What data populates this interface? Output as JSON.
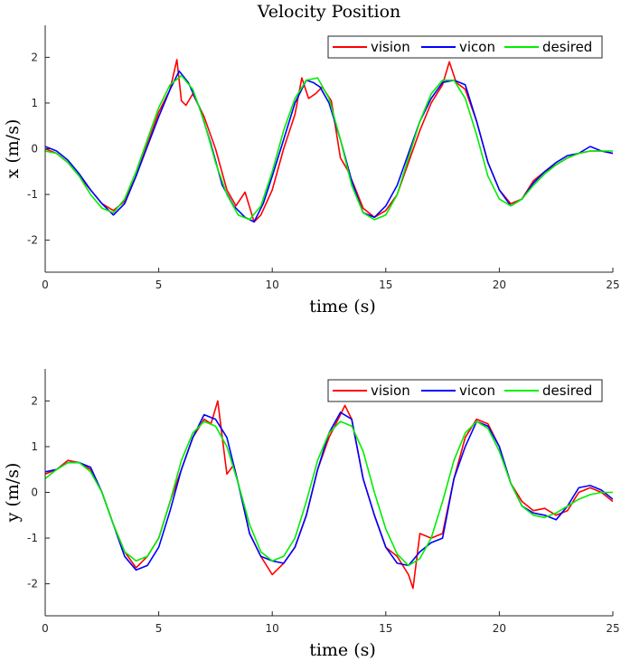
{
  "title": "Velocity Position",
  "colors": {
    "vision": "#ff0000",
    "vicon": "#0000ff",
    "desired": "#00ee00",
    "axis": "#262626"
  },
  "chart_data": [
    {
      "type": "line",
      "title": "Velocity Position",
      "xlabel": "time (s)",
      "ylabel": "x (m/s)",
      "xlim": [
        0,
        25
      ],
      "ylim": [
        -2.7,
        2.7
      ],
      "xticks": [
        0,
        5,
        10,
        15,
        20,
        25
      ],
      "yticks": [
        -2,
        -1,
        0,
        1,
        2
      ],
      "grid": false,
      "legend_position": "top-right",
      "legend_orientation": "horizontal",
      "series": [
        {
          "name": "vision",
          "color": "#ff0000",
          "x": [
            0,
            0.5,
            1,
            1.5,
            2,
            2.5,
            3,
            3.5,
            4,
            4.5,
            5,
            5.5,
            5.8,
            6,
            6.2,
            6.5,
            7,
            7.5,
            8,
            8.4,
            8.8,
            9.2,
            9.5,
            10,
            10.5,
            11,
            11.3,
            11.6,
            11.9,
            12.2,
            12.6,
            13,
            13.3,
            13.6,
            14,
            14.5,
            15,
            15.5,
            16,
            16.5,
            17,
            17.5,
            17.8,
            18.1,
            18.5,
            19,
            19.5,
            20,
            20.5,
            21,
            21.5,
            22,
            22.5,
            23,
            23.5,
            24,
            24.5,
            25
          ],
          "y": [
            0.0,
            -0.1,
            -0.3,
            -0.6,
            -0.9,
            -1.2,
            -1.35,
            -1.15,
            -0.6,
            0.1,
            0.8,
            1.3,
            1.95,
            1.05,
            0.95,
            1.2,
            0.7,
            0.0,
            -0.9,
            -1.25,
            -0.95,
            -1.6,
            -1.45,
            -0.9,
            0.0,
            0.75,
            1.55,
            1.1,
            1.2,
            1.35,
            1.05,
            -0.2,
            -0.45,
            -0.8,
            -1.3,
            -1.5,
            -1.35,
            -1.0,
            -0.3,
            0.4,
            1.0,
            1.4,
            1.9,
            1.45,
            1.3,
            0.6,
            -0.3,
            -0.9,
            -1.2,
            -1.1,
            -0.7,
            -0.5,
            -0.35,
            -0.2,
            -0.1,
            -0.05,
            -0.05,
            -0.1
          ]
        },
        {
          "name": "vicon",
          "color": "#0000ff",
          "x": [
            0,
            0.5,
            1,
            1.5,
            2,
            2.5,
            3,
            3.5,
            4,
            4.5,
            5,
            5.5,
            5.9,
            6.3,
            6.8,
            7.3,
            7.8,
            8.3,
            8.8,
            9.2,
            9.6,
            10,
            10.5,
            11,
            11.5,
            11.8,
            12.1,
            12.5,
            13,
            13.5,
            14,
            14.5,
            15,
            15.5,
            16,
            16.5,
            17,
            17.5,
            18,
            18.5,
            19,
            19.5,
            20,
            20.5,
            21,
            21.5,
            22,
            22.5,
            23,
            23.5,
            24,
            24.5,
            25
          ],
          "y": [
            0.05,
            -0.05,
            -0.25,
            -0.55,
            -0.9,
            -1.2,
            -1.45,
            -1.2,
            -0.6,
            0.05,
            0.7,
            1.3,
            1.7,
            1.45,
            0.9,
            0.1,
            -0.8,
            -1.25,
            -1.5,
            -1.6,
            -1.2,
            -0.6,
            0.2,
            1.0,
            1.5,
            1.45,
            1.35,
            1.0,
            0.2,
            -0.7,
            -1.4,
            -1.5,
            -1.25,
            -0.8,
            -0.1,
            0.6,
            1.1,
            1.45,
            1.5,
            1.4,
            0.6,
            -0.3,
            -0.9,
            -1.25,
            -1.1,
            -0.75,
            -0.5,
            -0.3,
            -0.15,
            -0.1,
            0.05,
            -0.05,
            -0.1
          ]
        },
        {
          "name": "desired",
          "color": "#00ee00",
          "x": [
            0,
            0.5,
            1,
            1.5,
            2,
            2.5,
            3,
            3.5,
            4,
            4.5,
            5,
            5.5,
            6,
            6.5,
            7,
            7.5,
            8,
            8.5,
            9,
            9.5,
            10,
            10.5,
            11,
            11.5,
            12,
            12.5,
            13,
            13.5,
            14,
            14.5,
            15,
            15.5,
            16,
            16.5,
            17,
            17.5,
            18,
            18.5,
            19,
            19.5,
            20,
            20.5,
            21,
            21.5,
            22,
            22.5,
            23,
            23.5,
            24,
            24.5,
            25
          ],
          "y": [
            -0.05,
            -0.1,
            -0.3,
            -0.6,
            -1.0,
            -1.3,
            -1.4,
            -1.1,
            -0.5,
            0.2,
            0.9,
            1.4,
            1.6,
            1.3,
            0.6,
            -0.3,
            -1.0,
            -1.45,
            -1.55,
            -1.25,
            -0.5,
            0.4,
            1.1,
            1.5,
            1.55,
            1.1,
            0.2,
            -0.8,
            -1.4,
            -1.55,
            -1.45,
            -1.0,
            -0.2,
            0.6,
            1.2,
            1.5,
            1.5,
            1.1,
            0.3,
            -0.6,
            -1.1,
            -1.25,
            -1.1,
            -0.8,
            -0.55,
            -0.35,
            -0.2,
            -0.1,
            -0.05,
            -0.05,
            -0.05
          ]
        }
      ]
    },
    {
      "type": "line",
      "title": "",
      "xlabel": "time (s)",
      "ylabel": "y (m/s)",
      "xlim": [
        0,
        25
      ],
      "ylim": [
        -2.7,
        2.7
      ],
      "xticks": [
        0,
        5,
        10,
        15,
        20,
        25
      ],
      "yticks": [
        -2,
        -1,
        0,
        1,
        2
      ],
      "grid": false,
      "legend_position": "top-right",
      "legend_orientation": "horizontal",
      "series": [
        {
          "name": "vision",
          "color": "#ff0000",
          "x": [
            0,
            0.5,
            1,
            1.5,
            2,
            2.5,
            3,
            3.5,
            4,
            4.5,
            5,
            5.5,
            6,
            6.5,
            7,
            7.3,
            7.6,
            7.8,
            8,
            8.3,
            8.6,
            9,
            9.5,
            10,
            10.5,
            11,
            11.5,
            12,
            12.5,
            13,
            13.2,
            13.5,
            14,
            14.5,
            15,
            15.5,
            16,
            16.2,
            16.5,
            17,
            17.5,
            18,
            18.5,
            19,
            19.5,
            20,
            20.5,
            21,
            21.5,
            22,
            22.5,
            23,
            23.5,
            24,
            24.5,
            25
          ],
          "y": [
            0.4,
            0.5,
            0.7,
            0.65,
            0.5,
            0.0,
            -0.7,
            -1.3,
            -1.65,
            -1.4,
            -1.0,
            -0.2,
            0.5,
            1.2,
            1.6,
            1.5,
            2.0,
            1.2,
            0.4,
            0.6,
            0.0,
            -0.9,
            -1.4,
            -1.8,
            -1.55,
            -1.2,
            -0.5,
            0.5,
            1.2,
            1.7,
            1.9,
            1.6,
            0.3,
            -0.5,
            -1.2,
            -1.4,
            -1.8,
            -2.1,
            -0.9,
            -1.0,
            -0.9,
            0.3,
            1.2,
            1.6,
            1.5,
            1.0,
            0.2,
            -0.2,
            -0.4,
            -0.35,
            -0.5,
            -0.4,
            0.0,
            0.1,
            0.0,
            -0.2
          ]
        },
        {
          "name": "vicon",
          "color": "#0000ff",
          "x": [
            0,
            0.5,
            1,
            1.5,
            2,
            2.5,
            3,
            3.5,
            4,
            4.5,
            5,
            5.5,
            6,
            6.5,
            7,
            7.5,
            8,
            8.5,
            9,
            9.5,
            10,
            10.5,
            11,
            11.5,
            12,
            12.5,
            13,
            13.5,
            14,
            14.5,
            15,
            15.5,
            16,
            16.5,
            17,
            17.5,
            18,
            18.5,
            19,
            19.5,
            20,
            20.5,
            21,
            21.5,
            22,
            22.5,
            23,
            23.5,
            24,
            24.5,
            25
          ],
          "y": [
            0.45,
            0.5,
            0.65,
            0.65,
            0.55,
            0.0,
            -0.7,
            -1.4,
            -1.7,
            -1.6,
            -1.2,
            -0.4,
            0.5,
            1.2,
            1.7,
            1.6,
            1.2,
            0.2,
            -0.9,
            -1.4,
            -1.5,
            -1.55,
            -1.2,
            -0.5,
            0.5,
            1.3,
            1.75,
            1.6,
            0.3,
            -0.5,
            -1.2,
            -1.55,
            -1.6,
            -1.3,
            -1.1,
            -1.0,
            0.3,
            1.0,
            1.55,
            1.45,
            1.0,
            0.2,
            -0.3,
            -0.45,
            -0.5,
            -0.6,
            -0.3,
            0.1,
            0.15,
            0.05,
            -0.15
          ]
        },
        {
          "name": "desired",
          "color": "#00ee00",
          "x": [
            0,
            0.5,
            1,
            1.5,
            2,
            2.5,
            3,
            3.5,
            4,
            4.5,
            5,
            5.5,
            6,
            6.5,
            7,
            7.5,
            8,
            8.5,
            9,
            9.5,
            10,
            10.5,
            11,
            11.5,
            12,
            12.5,
            13,
            13.5,
            14,
            14.5,
            15,
            15.5,
            16,
            16.5,
            17,
            17.5,
            18,
            18.5,
            19,
            19.5,
            20,
            20.5,
            21,
            21.5,
            22,
            22.5,
            23,
            23.5,
            24,
            24.5,
            25
          ],
          "y": [
            0.3,
            0.5,
            0.65,
            0.65,
            0.45,
            0.0,
            -0.7,
            -1.3,
            -1.5,
            -1.4,
            -1.0,
            -0.2,
            0.7,
            1.3,
            1.55,
            1.45,
            1.0,
            0.2,
            -0.7,
            -1.3,
            -1.5,
            -1.4,
            -1.0,
            -0.2,
            0.7,
            1.3,
            1.55,
            1.45,
            0.9,
            0.0,
            -0.8,
            -1.35,
            -1.6,
            -1.45,
            -1.0,
            -0.2,
            0.7,
            1.3,
            1.55,
            1.4,
            0.9,
            0.2,
            -0.3,
            -0.5,
            -0.55,
            -0.45,
            -0.3,
            -0.15,
            -0.05,
            0.0,
            0.0
          ]
        }
      ]
    }
  ]
}
